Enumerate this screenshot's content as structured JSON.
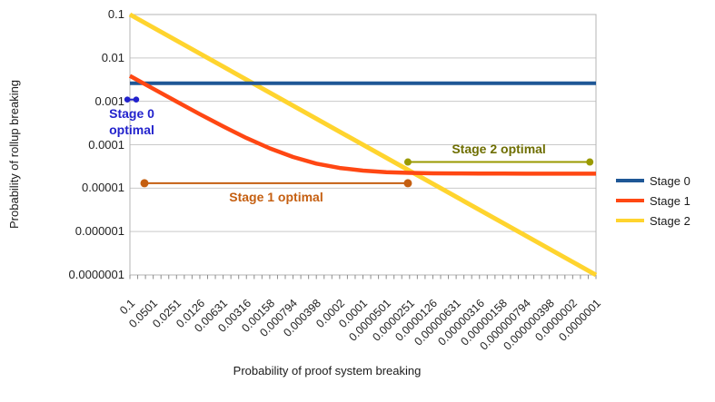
{
  "chart_data": {
    "type": "line",
    "title": "",
    "xlabel": "Probability of proof system breaking",
    "ylabel": "Probability of rollup breaking",
    "x_scale": "log",
    "y_scale": "log",
    "x_range": [
      0.1,
      1e-07
    ],
    "y_range": [
      0.1,
      1e-07
    ],
    "x_tick_labels": [
      "0.1",
      "0.0501",
      "0.0251",
      "0.0126",
      "0.00631",
      "0.00316",
      "0.00158",
      "0.000794",
      "0.000398",
      "0.0002",
      "0.0001",
      "0.0000501",
      "0.0000251",
      "0.0000126",
      "0.00000631",
      "0.00000316",
      "0.00000158",
      "0.000000794",
      "0.000000398",
      "0.0000002",
      "0.0000001"
    ],
    "y_tick_labels": [
      "0.1",
      "0.01",
      "0.001",
      "0.0001",
      "0.00001",
      "0.000001",
      "0.0000001"
    ],
    "minor_ticks_per_major": 3,
    "grid": "horizontal-only",
    "legend_position": "right",
    "colors": {
      "grid": "#C9C9C9",
      "plot_border": "#B4B4B4",
      "tick": "#8C8C8C",
      "text": "#1A1A1A"
    },
    "series": [
      {
        "name": "Stage 0",
        "color": "#1F5796",
        "line_width": 4,
        "points": [
          [
            0.1,
            0.0026
          ],
          [
            1e-07,
            0.0026
          ]
        ]
      },
      {
        "name": "Stage 1",
        "color": "#FF4713",
        "line_width": 4.5,
        "points": [
          [
            0.1,
            0.00387
          ],
          [
            0.0501,
            0.00195
          ],
          [
            0.0251,
            0.000988
          ],
          [
            0.0126,
            0.000507
          ],
          [
            0.00631,
            0.000264
          ],
          [
            0.00316,
            0.000143
          ],
          [
            0.00158,
            8.23e-05
          ],
          [
            0.000794,
            5.21e-05
          ],
          [
            0.000398,
            3.68e-05
          ],
          [
            0.0002,
            2.92e-05
          ],
          [
            0.0001,
            2.54e-05
          ],
          [
            5.01e-05,
            2.34e-05
          ],
          [
            2.51e-05,
            2.25e-05
          ],
          [
            1.26e-05,
            2.2e-05
          ],
          [
            6.31e-06,
            2.18e-05
          ],
          [
            3.16e-06,
            2.16e-05
          ],
          [
            1.58e-06,
            2.16e-05
          ],
          [
            7.94e-07,
            2.15e-05
          ],
          [
            3.98e-07,
            2.15e-05
          ],
          [
            2e-07,
            2.15e-05
          ],
          [
            1e-07,
            2.15e-05
          ]
        ]
      },
      {
        "name": "Stage 2",
        "color": "#FFD42E",
        "line_width": 5,
        "points": [
          [
            0.1,
            0.1
          ],
          [
            1e-07,
            1e-07
          ]
        ]
      }
    ],
    "annotations": [
      {
        "id": "stage-0-optimal",
        "label_lines": [
          "Stage 0",
          "optimal"
        ],
        "color": "#2222CC",
        "label_color": "#2222CC",
        "x_from": 0.108,
        "x_to": 0.083,
        "y": 0.0011,
        "line_width": 2,
        "dot_r": 3.3,
        "label_position": "below"
      },
      {
        "id": "stage-1-optimal",
        "label_lines": [
          "Stage 1 optimal"
        ],
        "color": "#C55F11",
        "label_color": "#C55F11",
        "x_from": 0.065,
        "x_to": 2.64e-05,
        "y": 1.3e-05,
        "line_width": 2,
        "dot_r": 4.5,
        "label_position": "below"
      },
      {
        "id": "stage-2-optimal",
        "label_lines": [
          "Stage 2 optimal"
        ],
        "color": "#9A9A00",
        "label_color": "#6E6E00",
        "x_from": 2.64e-05,
        "x_to": 1.2e-07,
        "y": 4e-05,
        "line_width": 2,
        "dot_r": 4,
        "label_position": "above"
      }
    ]
  }
}
